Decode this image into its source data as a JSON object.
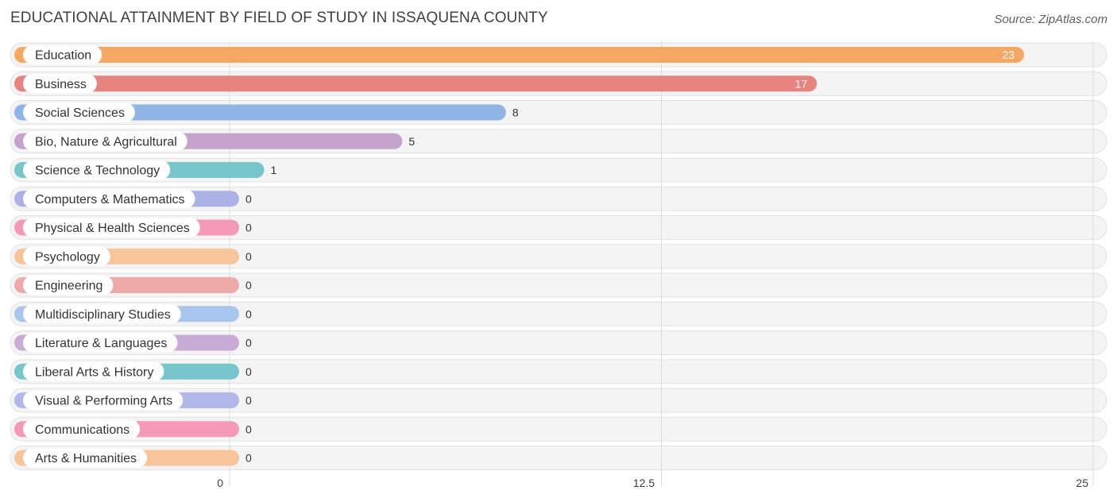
{
  "header": {
    "title": "EDUCATIONAL ATTAINMENT BY FIELD OF STUDY IN ISSAQUENA COUNTY",
    "source": "Source: ZipAtlas.com"
  },
  "chart_data": {
    "type": "bar",
    "orientation": "horizontal",
    "categories": [
      "Education",
      "Business",
      "Social Sciences",
      "Bio, Nature & Agricultural",
      "Science & Technology",
      "Computers & Mathematics",
      "Physical & Health Sciences",
      "Psychology",
      "Engineering",
      "Multidisciplinary Studies",
      "Literature & Languages",
      "Liberal Arts & History",
      "Visual & Performing Arts",
      "Communications",
      "Arts & Humanities"
    ],
    "values": [
      23,
      17,
      8,
      5,
      1,
      0,
      0,
      0,
      0,
      0,
      0,
      0,
      0,
      0,
      0
    ],
    "colors": [
      "#f5a862",
      "#e8847f",
      "#8fb4e6",
      "#c4a3cc",
      "#76c6cc",
      "#aab2e6",
      "#f49ab6",
      "#f8c59a",
      "#eeaaa8",
      "#a9c6ee",
      "#c9acd6",
      "#76c6cc",
      "#b3b8ec",
      "#f49ab6",
      "#f8c59a"
    ],
    "xlim": [
      0,
      25
    ],
    "xticks": [
      "0",
      "12.5",
      "25"
    ],
    "grid": true
  }
}
